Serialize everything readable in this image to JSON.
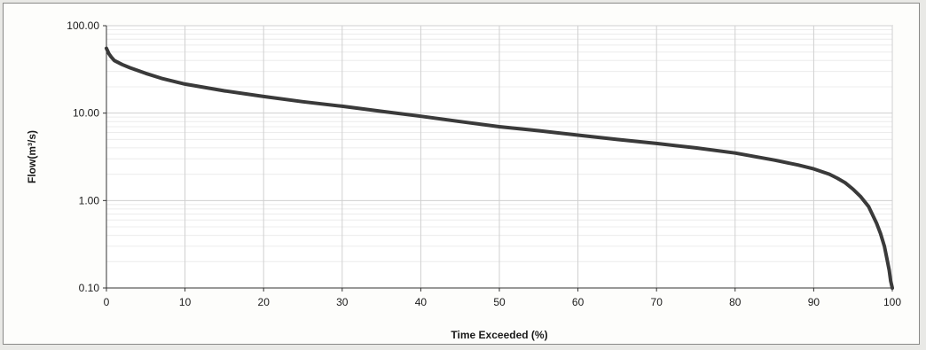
{
  "chart_data": {
    "type": "line",
    "title": "",
    "xlabel": "Time Exceeded (%)",
    "ylabel": "Flow(m³/s)",
    "xlim": [
      0,
      100
    ],
    "ylim": [
      0.1,
      100
    ],
    "y_scale": "log",
    "grid": true,
    "x_ticks": [
      "0",
      "10",
      "20",
      "30",
      "40",
      "50",
      "60",
      "70",
      "80",
      "90",
      "100"
    ],
    "y_ticks": [
      "0.10",
      "1.00",
      "10.00",
      "100.00"
    ],
    "series": [
      {
        "color": "#3a3a3a",
        "x": [
          0,
          0.3,
          0.6,
          1,
          2,
          3,
          5,
          7,
          10,
          15,
          20,
          25,
          30,
          35,
          40,
          45,
          50,
          55,
          60,
          65,
          70,
          75,
          80,
          85,
          88,
          90,
          92,
          93,
          94,
          95,
          96,
          97,
          98,
          98.5,
          99,
          99.3,
          99.6,
          99.8,
          100
        ],
        "y": [
          55,
          48,
          44,
          40,
          36,
          33,
          28.5,
          25,
          21.5,
          18,
          15.5,
          13.5,
          12,
          10.5,
          9.2,
          8.0,
          7.0,
          6.3,
          5.6,
          5.0,
          4.5,
          4.0,
          3.5,
          2.9,
          2.55,
          2.3,
          2.0,
          1.8,
          1.6,
          1.35,
          1.1,
          0.85,
          0.55,
          0.42,
          0.3,
          0.22,
          0.16,
          0.12,
          0.1
        ]
      }
    ]
  }
}
